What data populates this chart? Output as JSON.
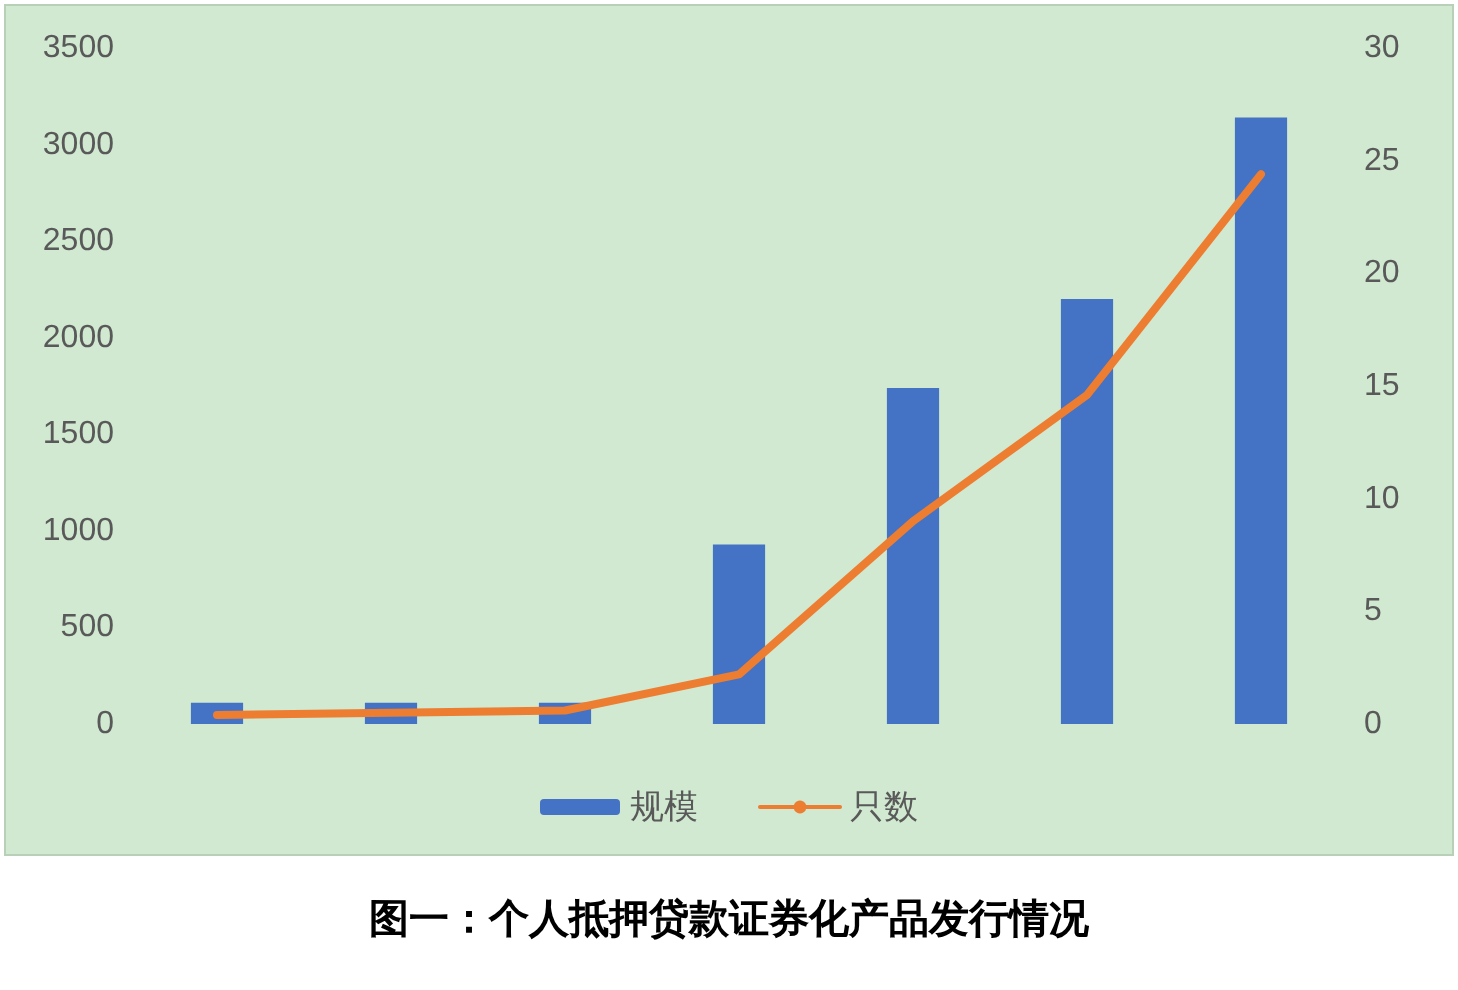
{
  "chart_data": {
    "type": "bar",
    "title": "图一：个人抵押贷款证券化产品发行情况",
    "categories": [
      null,
      null,
      null,
      null,
      null,
      null,
      null
    ],
    "series": [
      {
        "name": "规模",
        "color": "#4472c4",
        "values": [
          110,
          110,
          110,
          930,
          1740,
          2200,
          3140
        ]
      },
      {
        "name": "只数",
        "type": "line",
        "axis": "y2",
        "color": "#ed7d31",
        "values": [
          0.4,
          0.5,
          0.6,
          2.2,
          9.0,
          14.6,
          24.4
        ]
      }
    ],
    "ylim": [
      0,
      3500
    ],
    "yticks": [
      0,
      500,
      1000,
      1500,
      2000,
      2500,
      3000,
      3500
    ],
    "y2lim": [
      0,
      30
    ],
    "y2ticks": [
      0,
      5,
      10,
      15,
      20,
      25,
      30
    ],
    "grid": false,
    "legend": "bottom",
    "marker": "none",
    "line_style": "solid"
  }
}
